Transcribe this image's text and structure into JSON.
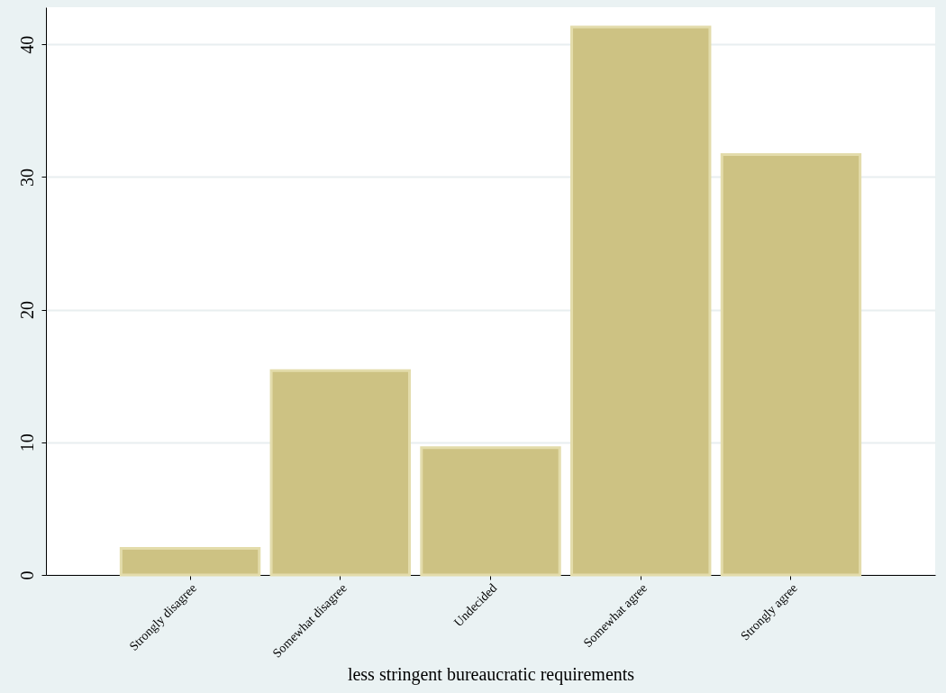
{
  "chart_data": {
    "type": "bar",
    "xlabel": "less stringent bureaucratic requirements",
    "categories": [
      "Strongly disagree",
      "Somewhat disagree",
      "Undecided",
      "Somewhat agree",
      "Strongly agree"
    ],
    "values": [
      2.0,
      15.4,
      9.6,
      41.3,
      31.7
    ],
    "color": "#cdc283",
    "ylim": [
      0,
      42.8
    ],
    "yticks": [
      0,
      10,
      20,
      30,
      40
    ],
    "grid": "y"
  }
}
